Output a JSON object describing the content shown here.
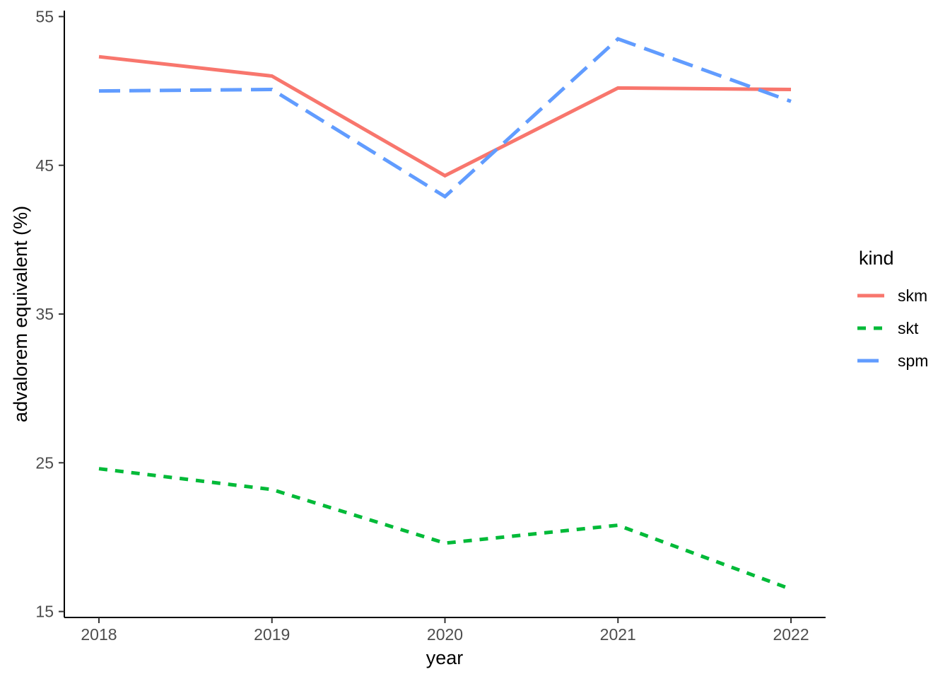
{
  "chart_data": {
    "type": "line",
    "title": "",
    "xlabel": "year",
    "ylabel": "advalorem equivalent (%)",
    "x": [
      2018,
      2019,
      2020,
      2021,
      2022
    ],
    "x_tick_labels": [
      "2018",
      "2019",
      "2020",
      "2021",
      "2022"
    ],
    "y_ticks": [
      15,
      25,
      35,
      45,
      55
    ],
    "y_tick_labels": [
      "15",
      "25",
      "35",
      "45",
      "55"
    ],
    "xlim": [
      2017.8,
      2022.2
    ],
    "ylim": [
      14.6,
      55.4
    ],
    "grid": false,
    "background_color": "#ffffff",
    "axis_line_color": "#000000",
    "tick_mark_color": "#333333",
    "tick_text_color": "#4d4d4d",
    "legend": {
      "title": "kind",
      "position": "right"
    },
    "series": [
      {
        "name": "skm",
        "color": "#F8766D",
        "dash": "solid",
        "values": [
          52.3,
          51.0,
          44.3,
          50.2,
          50.1
        ]
      },
      {
        "name": "skt",
        "color": "#00BA38",
        "dash": "dashed",
        "values": [
          24.6,
          23.2,
          19.6,
          20.8,
          16.5
        ]
      },
      {
        "name": "spm",
        "color": "#619CFF",
        "dash": "longdash",
        "values": [
          50.0,
          50.1,
          42.9,
          53.5,
          49.3
        ]
      }
    ]
  }
}
